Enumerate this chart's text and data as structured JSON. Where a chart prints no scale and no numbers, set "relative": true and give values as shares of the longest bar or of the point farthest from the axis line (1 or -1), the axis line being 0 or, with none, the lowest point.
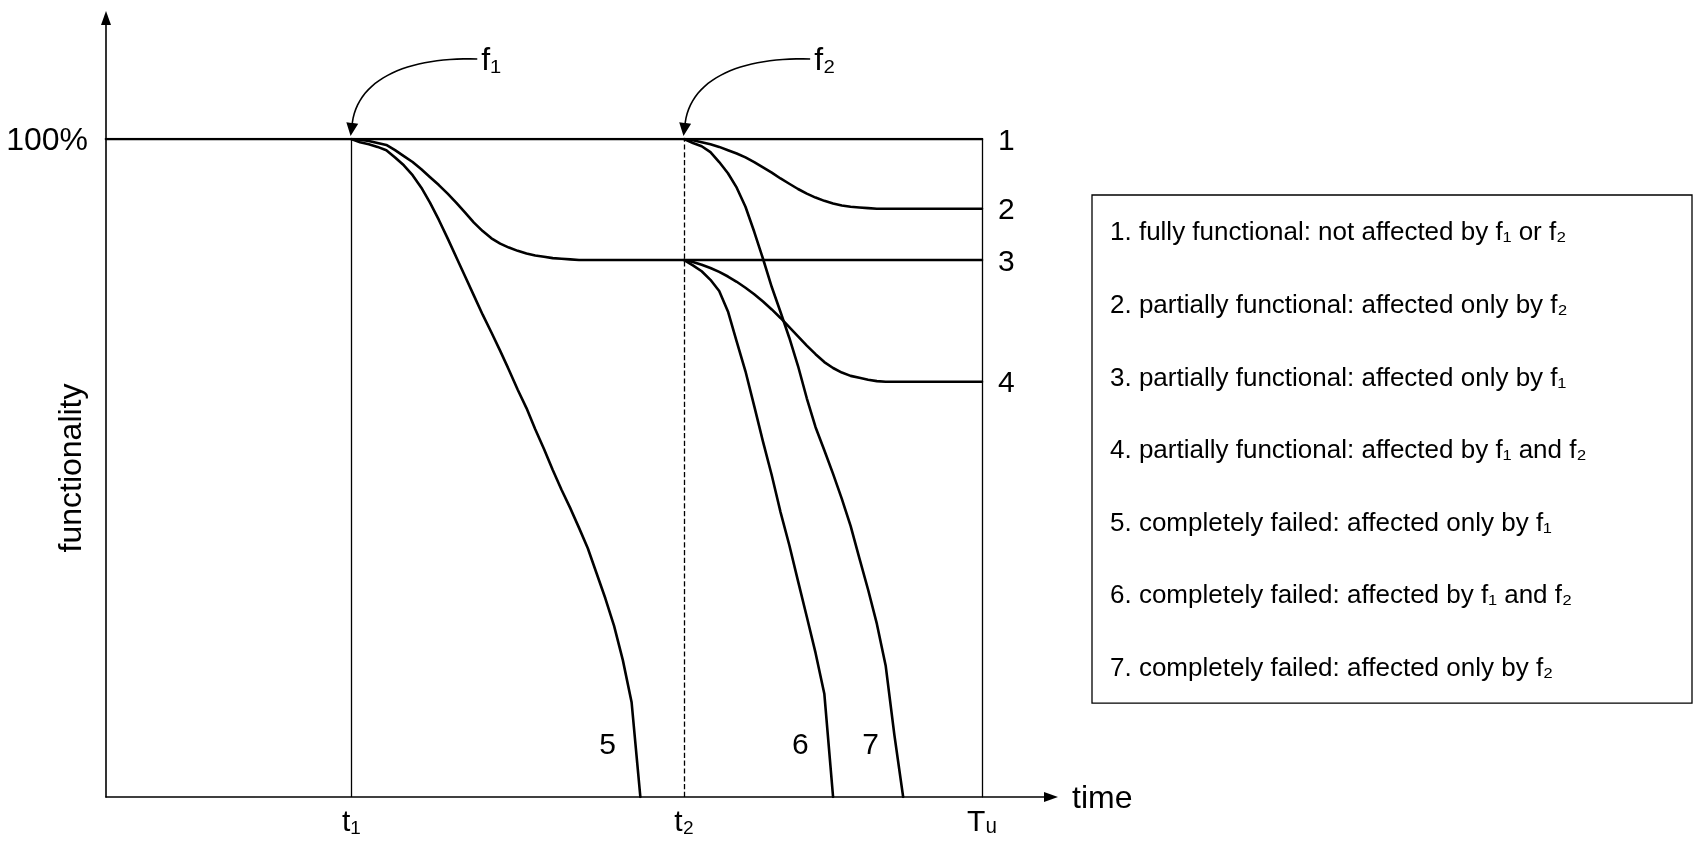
{
  "chart_data": {
    "type": "line",
    "xlabel": "time",
    "ylabel": "functionality",
    "relative": true,
    "marker": "none",
    "line_style": "solid",
    "categories": [
      null,
      null,
      null,
      null,
      null,
      null,
      null,
      null,
      null,
      null,
      null,
      null,
      null,
      null,
      null,
      null,
      null,
      null,
      null,
      null,
      null,
      null,
      null,
      null,
      null,
      null,
      null,
      null,
      "t₁",
      null,
      null,
      null,
      null,
      null,
      null,
      null,
      null,
      null,
      null,
      null,
      null,
      null,
      null,
      null,
      null,
      null,
      null,
      null,
      null,
      null,
      null,
      null,
      null,
      null,
      null,
      null,
      null,
      null,
      null,
      null,
      null,
      null,
      null,
      null,
      null,
      null,
      "t₂",
      null,
      null,
      null,
      null,
      null,
      null,
      null,
      null,
      null,
      null,
      null,
      null,
      null,
      null,
      null,
      null,
      null,
      null,
      null,
      null,
      null,
      null,
      null,
      null,
      null,
      null,
      null,
      null,
      null,
      null,
      null,
      null,
      null,
      "Tᵤ"
    ],
    "series": [
      {
        "name": "1",
        "color": "#000000",
        "values": [
          1,
          1,
          1,
          1,
          1,
          1,
          1,
          1,
          1,
          1,
          1,
          1,
          1,
          1,
          1,
          1,
          1,
          1,
          1,
          1,
          1,
          1,
          1,
          1,
          1,
          1,
          1,
          1,
          1,
          1,
          1,
          1,
          1,
          1,
          1,
          1,
          1,
          1,
          1,
          1,
          1,
          1,
          1,
          1,
          1,
          1,
          1,
          1,
          1,
          1,
          1,
          1,
          1,
          1,
          1,
          1,
          1,
          1,
          1,
          1,
          1,
          1,
          1,
          1,
          1,
          1,
          1,
          1,
          1,
          1,
          1,
          1,
          1,
          1,
          1,
          1,
          1,
          1,
          1,
          1,
          1,
          1,
          1,
          1,
          1,
          1,
          1,
          1,
          1,
          1,
          1,
          1,
          1,
          1,
          1,
          1,
          1,
          1,
          1,
          1,
          1
        ]
      },
      {
        "name": "2",
        "color": "#000000",
        "values": [
          null,
          null,
          null,
          null,
          null,
          null,
          null,
          null,
          null,
          null,
          null,
          null,
          null,
          null,
          null,
          null,
          null,
          null,
          null,
          null,
          null,
          null,
          null,
          null,
          null,
          null,
          null,
          null,
          null,
          null,
          null,
          null,
          null,
          null,
          null,
          null,
          null,
          null,
          null,
          null,
          null,
          null,
          null,
          null,
          null,
          null,
          null,
          null,
          null,
          null,
          null,
          null,
          null,
          null,
          null,
          null,
          null,
          null,
          null,
          null,
          null,
          null,
          null,
          null,
          null,
          null,
          1,
          0.998,
          0.995,
          0.992,
          0.988,
          0.983,
          0.978,
          0.972,
          0.965,
          0.957,
          0.949,
          0.94,
          0.932,
          0.924,
          0.917,
          0.911,
          0.906,
          0.902,
          0.899,
          0.897,
          0.896,
          0.895,
          0.894,
          0.894,
          0.894,
          0.894,
          0.894,
          0.894,
          0.894,
          0.894,
          0.894,
          0.894,
          0.894,
          0.894,
          0.894
        ]
      },
      {
        "name": "3",
        "color": "#000000",
        "values": [
          null,
          null,
          null,
          null,
          null,
          null,
          null,
          null,
          null,
          null,
          null,
          null,
          null,
          null,
          null,
          null,
          null,
          null,
          null,
          null,
          null,
          null,
          null,
          null,
          null,
          null,
          null,
          null,
          1,
          0.999,
          0.997,
          0.994,
          0.991,
          0.983,
          0.974,
          0.965,
          0.954,
          0.942,
          0.93,
          0.917,
          0.903,
          0.888,
          0.873,
          0.86,
          0.849,
          0.841,
          0.835,
          0.83,
          0.826,
          0.823,
          0.821,
          0.819,
          0.818,
          0.817,
          0.816,
          0.816,
          0.816,
          0.816,
          0.816,
          0.816,
          0.816,
          0.816,
          0.816,
          0.816,
          0.816,
          0.816,
          0.816,
          0.816,
          0.816,
          0.816,
          0.816,
          0.816,
          0.816,
          0.816,
          0.816,
          0.816,
          0.816,
          0.816,
          0.816,
          0.816,
          0.816,
          0.816,
          0.816,
          0.816,
          0.816,
          0.816,
          0.816,
          0.816,
          0.816,
          0.816,
          0.816,
          0.816,
          0.816,
          0.816,
          0.816,
          0.816,
          0.816,
          0.816,
          0.816,
          0.816,
          0.816
        ]
      },
      {
        "name": "4",
        "color": "#000000",
        "values": [
          null,
          null,
          null,
          null,
          null,
          null,
          null,
          null,
          null,
          null,
          null,
          null,
          null,
          null,
          null,
          null,
          null,
          null,
          null,
          null,
          null,
          null,
          null,
          null,
          null,
          null,
          null,
          null,
          null,
          null,
          null,
          null,
          null,
          null,
          null,
          null,
          null,
          null,
          null,
          null,
          null,
          null,
          null,
          null,
          null,
          null,
          null,
          null,
          null,
          null,
          null,
          null,
          null,
          null,
          null,
          null,
          null,
          null,
          null,
          null,
          null,
          null,
          null,
          null,
          null,
          null,
          0.816,
          0.813,
          0.809,
          0.804,
          0.798,
          0.791,
          0.783,
          0.774,
          0.764,
          0.753,
          0.741,
          0.728,
          0.714,
          0.7,
          0.686,
          0.673,
          0.661,
          0.652,
          0.645,
          0.64,
          0.637,
          0.634,
          0.632,
          0.631,
          0.631,
          0.631,
          0.631,
          0.631,
          0.631,
          0.631,
          0.631,
          0.631,
          0.631,
          0.631,
          0.631
        ]
      },
      {
        "name": "5",
        "color": "#000000",
        "values": [
          null,
          null,
          null,
          null,
          null,
          null,
          null,
          null,
          null,
          null,
          null,
          null,
          null,
          null,
          null,
          null,
          null,
          null,
          null,
          null,
          null,
          null,
          null,
          null,
          null,
          null,
          null,
          null,
          1,
          0.995,
          0.992,
          0.988,
          0.983,
          0.972,
          0.96,
          0.945,
          0.926,
          0.903,
          0.877,
          0.849,
          0.82,
          0.791,
          0.762,
          0.733,
          0.706,
          0.678,
          0.649,
          0.619,
          0.591,
          0.559,
          0.529,
          0.497,
          0.467,
          0.439,
          0.409,
          0.378,
          0.34,
          0.302,
          0.26,
          0.208,
          0.144,
          0,
          null,
          null,
          null,
          null,
          null,
          null,
          null,
          null,
          null,
          null,
          null,
          null,
          null,
          null,
          null,
          null,
          null,
          null,
          null,
          null,
          null,
          null,
          null,
          null,
          null,
          null,
          null,
          null,
          null,
          null,
          null,
          null,
          null,
          null,
          null,
          null,
          null,
          null,
          null
        ]
      },
      {
        "name": "6",
        "color": "#000000",
        "values": [
          null,
          null,
          null,
          null,
          null,
          null,
          null,
          null,
          null,
          null,
          null,
          null,
          null,
          null,
          null,
          null,
          null,
          null,
          null,
          null,
          null,
          null,
          null,
          null,
          null,
          null,
          null,
          null,
          null,
          null,
          null,
          null,
          null,
          null,
          null,
          null,
          null,
          null,
          null,
          null,
          null,
          null,
          null,
          null,
          null,
          null,
          null,
          null,
          null,
          null,
          null,
          null,
          null,
          null,
          null,
          null,
          null,
          null,
          null,
          null,
          null,
          null,
          null,
          null,
          null,
          null,
          0.816,
          0.808,
          0.799,
          0.786,
          0.769,
          0.738,
          0.692,
          0.647,
          0.594,
          0.54,
          0.489,
          0.433,
          0.383,
          0.328,
          0.274,
          0.219,
          0.157,
          0,
          null,
          null,
          null,
          null,
          null,
          null,
          null,
          null,
          null,
          null,
          null,
          null,
          null,
          null,
          null,
          null,
          null
        ]
      },
      {
        "name": "7",
        "color": "#000000",
        "values": [
          null,
          null,
          null,
          null,
          null,
          null,
          null,
          null,
          null,
          null,
          null,
          null,
          null,
          null,
          null,
          null,
          null,
          null,
          null,
          null,
          null,
          null,
          null,
          null,
          null,
          null,
          null,
          null,
          null,
          null,
          null,
          null,
          null,
          null,
          null,
          null,
          null,
          null,
          null,
          null,
          null,
          null,
          null,
          null,
          null,
          null,
          null,
          null,
          null,
          null,
          null,
          null,
          null,
          null,
          null,
          null,
          null,
          null,
          null,
          null,
          null,
          null,
          null,
          null,
          null,
          null,
          1,
          0.994,
          0.989,
          0.98,
          0.965,
          0.948,
          0.926,
          0.897,
          0.859,
          0.818,
          0.775,
          0.737,
          0.698,
          0.655,
          0.606,
          0.562,
          0.527,
          0.491,
          0.453,
          0.412,
          0.363,
          0.315,
          0.263,
          0.2,
          0.094,
          0,
          null,
          null,
          null,
          null,
          null,
          null,
          null,
          null,
          null
        ]
      }
    ],
    "ref_lines": [
      {
        "axis": "x",
        "value": "t₁",
        "color": "#000000",
        "line_style": "solid"
      },
      {
        "axis": "x",
        "value": "t₂",
        "color": "#000000",
        "line_style": "dashed"
      },
      {
        "axis": "x",
        "value": "Tᵤ",
        "color": "#000000",
        "line_style": "solid"
      }
    ],
    "annotations": [
      "f₁",
      "f₂",
      "100%",
      "1. fully functional: not affected by f₁ or f₂",
      "2. partially functional: affected only by f₂",
      "3. partially functional: affected only by f₁",
      "4. partially functional: affected by f₁ and f₂",
      "5. completely failed: affected only by f₁",
      "6. completely failed: affected by f₁ and f₂",
      "7. completely failed: affected only by f₂"
    ]
  }
}
